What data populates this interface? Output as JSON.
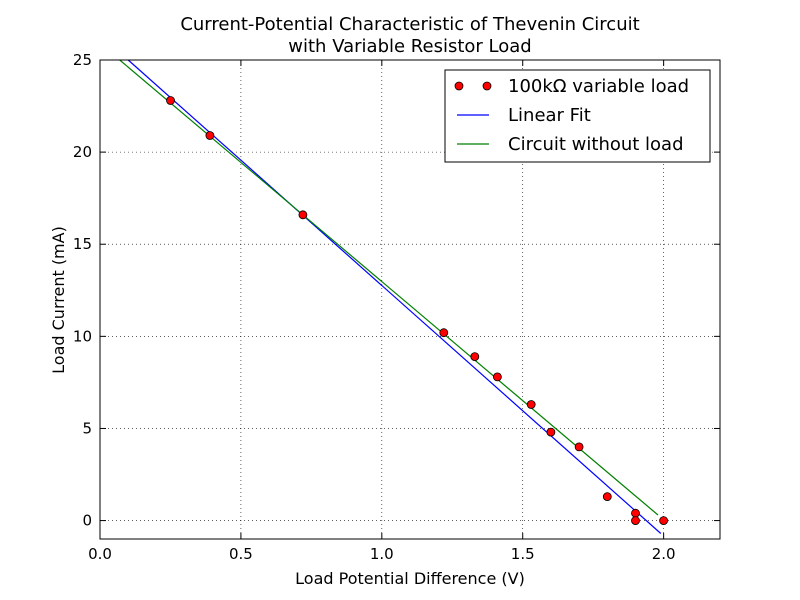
{
  "chart_data": {
    "type": "scatter",
    "title_line1": "Current-Potential Characteristic of Thevenin Circuit",
    "title_line2": "with Variable Resistor Load",
    "xlabel": "Load Potential Difference (V)",
    "ylabel": "Load Current (mA)",
    "xlim": [
      0.0,
      2.2
    ],
    "ylim": [
      -1,
      25
    ],
    "xticks": [
      "0.0",
      "0.5",
      "1.0",
      "1.5",
      "2.0"
    ],
    "xtick_values": [
      0.0,
      0.5,
      1.0,
      1.5,
      2.0
    ],
    "yticks": [
      "0",
      "5",
      "10",
      "15",
      "20",
      "25"
    ],
    "ytick_values": [
      0,
      5,
      10,
      15,
      20,
      25
    ],
    "grid": true,
    "legend_position": "top-right",
    "series": [
      {
        "name": "100kΩ variable load",
        "kind": "points",
        "color": "#ff0000",
        "x": [
          0.25,
          0.39,
          0.72,
          1.22,
          1.33,
          1.41,
          1.53,
          1.6,
          1.7,
          1.8,
          1.9,
          1.9,
          2.0
        ],
        "y": [
          22.8,
          20.9,
          16.6,
          10.2,
          8.9,
          7.8,
          6.3,
          4.8,
          4.0,
          1.3,
          0.4,
          0.0,
          0.0
        ]
      },
      {
        "name": "Linear Fit",
        "kind": "line",
        "color": "#0000ff",
        "x": [
          0.1,
          1.99
        ],
        "y": [
          25.0,
          -0.7
        ]
      },
      {
        "name": "Circuit without load",
        "kind": "line",
        "color": "#008000",
        "x": [
          0.07,
          1.98
        ],
        "y": [
          25.0,
          0.3
        ]
      }
    ]
  }
}
